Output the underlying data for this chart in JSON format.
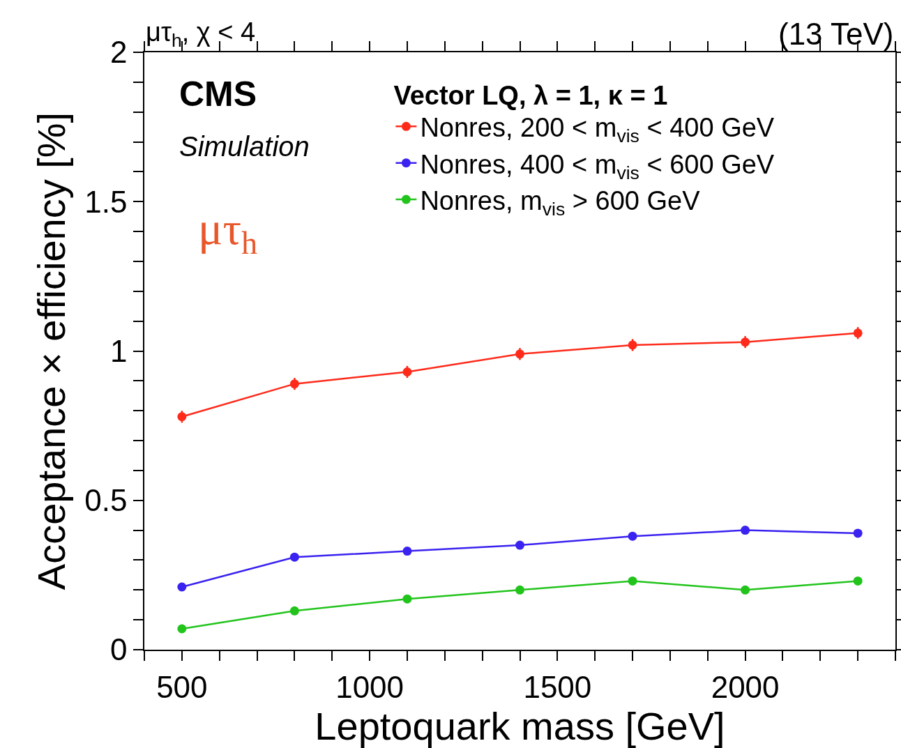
{
  "chart_data": {
    "type": "line",
    "xlabel": "Leptoquark mass [GeV]",
    "ylabel": "Acceptance × efficiency [%]",
    "legend_title": "Vector LQ, λ = 1, κ = 1",
    "annotations": [
      "μτ$_{h}$, χ < 4",
      "(13 TeV)",
      "CMS",
      "Simulation",
      "μτ$_{h}$"
    ],
    "x": [
      500,
      800,
      1100,
      1400,
      1700,
      2000,
      2300
    ],
    "series": [
      {
        "name": "Nonres, 200 < m$_{vis}$ < 400 GeV",
        "color": "#ff2a1a",
        "values": [
          0.78,
          0.89,
          0.93,
          0.99,
          1.02,
          1.03,
          1.06
        ],
        "errors": [
          0.02,
          0.02,
          0.02,
          0.02,
          0.02,
          0.02,
          0.02
        ]
      },
      {
        "name": "Nonres, 400 < m$_{vis}$ < 600 GeV",
        "color": "#3a22f0",
        "values": [
          0.21,
          0.31,
          0.33,
          0.35,
          0.38,
          0.4,
          0.39
        ],
        "errors": [
          0.01,
          0.01,
          0.01,
          0.01,
          0.01,
          0.01,
          0.01
        ]
      },
      {
        "name": "Nonres, m$_{vis}$ > 600 GeV",
        "color": "#22c41c",
        "values": [
          0.07,
          0.13,
          0.17,
          0.2,
          0.23,
          0.2,
          0.23
        ],
        "errors": [
          0.01,
          0.01,
          0.01,
          0.01,
          0.01,
          0.01,
          0.01
        ]
      }
    ],
    "xlim": [
      400,
      2400
    ],
    "xticks": [
      {
        "value": 400,
        "label": null
      },
      500,
      {
        "value": 600,
        "label": null
      },
      {
        "value": 700,
        "label": null
      },
      {
        "value": 800,
        "label": null
      },
      {
        "value": 900,
        "label": null
      },
      1000,
      {
        "value": 1100,
        "label": null
      },
      {
        "value": 1200,
        "label": null
      },
      {
        "value": 1300,
        "label": null
      },
      {
        "value": 1400,
        "label": null
      },
      1500,
      {
        "value": 1600,
        "label": null
      },
      {
        "value": 1700,
        "label": null
      },
      {
        "value": 1800,
        "label": null
      },
      {
        "value": 1900,
        "label": null
      },
      2000,
      {
        "value": 2100,
        "label": null
      },
      {
        "value": 2200,
        "label": null
      },
      {
        "value": 2300,
        "label": null
      },
      {
        "value": 2400,
        "label": null
      }
    ],
    "ylim": [
      0,
      2
    ],
    "yticks": [
      0,
      {
        "value": 0.1,
        "label": null
      },
      {
        "value": 0.2,
        "label": null
      },
      {
        "value": 0.3,
        "label": null
      },
      {
        "value": 0.4,
        "label": null
      },
      0.5,
      {
        "value": 0.6,
        "label": null
      },
      {
        "value": 0.7,
        "label": null
      },
      {
        "value": 0.8,
        "label": null
      },
      {
        "value": 0.9,
        "label": null
      },
      1,
      {
        "value": 1.1,
        "label": null
      },
      {
        "value": 1.2,
        "label": null
      },
      {
        "value": 1.3,
        "label": null
      },
      {
        "value": 1.4,
        "label": null
      },
      1.5,
      {
        "value": 1.6,
        "label": null
      },
      {
        "value": 1.7,
        "label": null
      },
      {
        "value": 1.8,
        "label": null
      },
      {
        "value": 1.9,
        "label": null
      },
      2
    ],
    "grid": false,
    "legend": "top right",
    "marker": "circle",
    "line_style": "solid"
  }
}
